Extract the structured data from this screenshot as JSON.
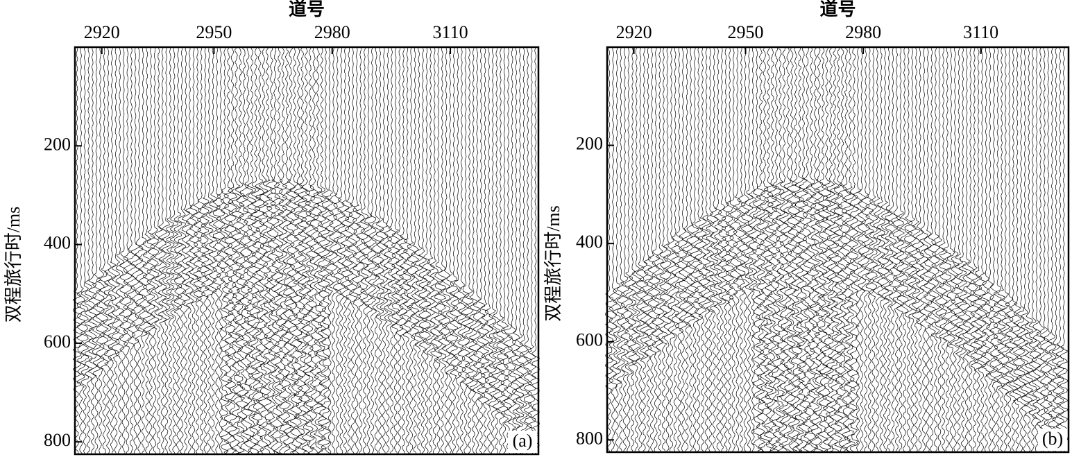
{
  "chart_data": [
    {
      "type": "seismic",
      "title": "道号",
      "y_label": "双程旅行时/ms",
      "x_tick_labels": [
        "2920",
        "2950",
        "2980",
        "3110"
      ],
      "ylim": [
        0,
        825
      ],
      "yticks": [
        200,
        400,
        600,
        800
      ],
      "panel_label": "(a)"
    },
    {
      "type": "seismic",
      "title": "道号",
      "y_label": "双程旅行时/ms",
      "x_tick_labels": [
        "2920",
        "2950",
        "2980",
        "3110"
      ],
      "ylim": [
        0,
        825
      ],
      "yticks": [
        200,
        400,
        600,
        800
      ],
      "panel_label": "(b)"
    }
  ]
}
